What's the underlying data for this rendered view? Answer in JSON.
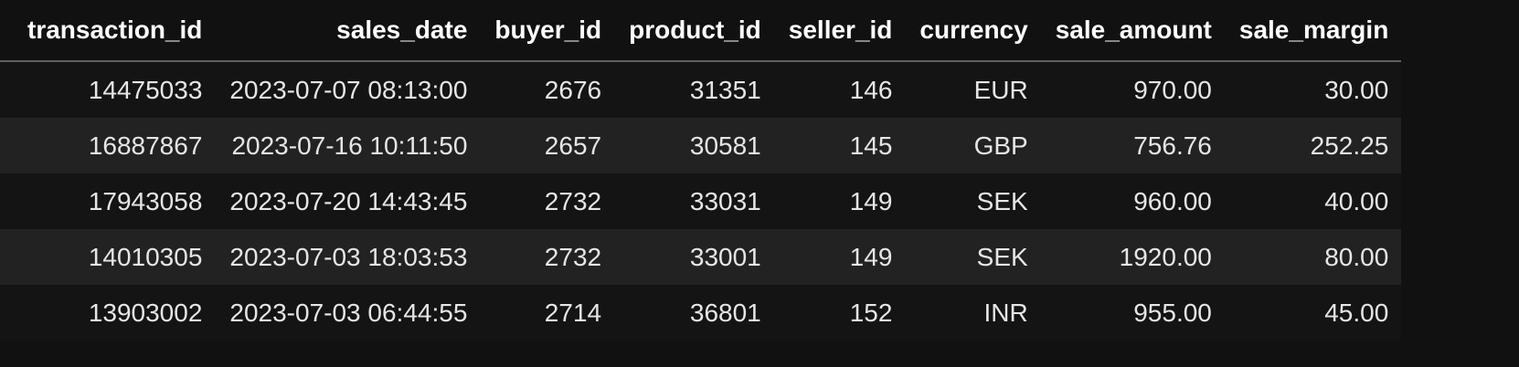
{
  "table": {
    "columns": [
      "transaction_id",
      "sales_date",
      "buyer_id",
      "product_id",
      "seller_id",
      "currency",
      "sale_amount",
      "sale_margin"
    ],
    "rows": [
      [
        "14475033",
        "2023-07-07 08:13:00",
        "2676",
        "31351",
        "146",
        "EUR",
        "970.00",
        "30.00"
      ],
      [
        "16887867",
        "2023-07-16 10:11:50",
        "2657",
        "30581",
        "145",
        "GBP",
        "756.76",
        "252.25"
      ],
      [
        "17943058",
        "2023-07-20 14:43:45",
        "2732",
        "33031",
        "149",
        "SEK",
        "960.00",
        "40.00"
      ],
      [
        "14010305",
        "2023-07-03 18:03:53",
        "2732",
        "33001",
        "149",
        "SEK",
        "1920.00",
        "80.00"
      ],
      [
        "13903002",
        "2023-07-03 06:44:55",
        "2714",
        "36801",
        "152",
        "INR",
        "955.00",
        "45.00"
      ]
    ]
  },
  "colors": {
    "background": "#111111",
    "row_alt": "#222222",
    "text": "#e6e6e6",
    "header_rule": "#606060"
  }
}
